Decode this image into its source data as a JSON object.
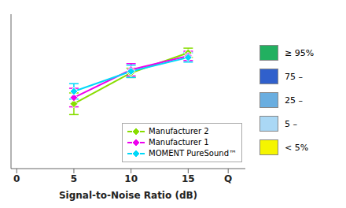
{
  "chart_data": {
    "type": "line",
    "x_label": "Signal-to-Noise Ratio (dB)",
    "xlim": [
      -0.5,
      20
    ],
    "xticks": [
      0,
      5,
      10,
      15,
      {
        "value": 18.5,
        "label": "Q"
      }
    ],
    "ylim": [
      0,
      100
    ],
    "yticks": [],
    "tick_labels": "x",
    "grid": false,
    "legend": "lower right",
    "x": [
      5,
      10,
      15
    ],
    "series": [
      {
        "name": "Manufacturer 2",
        "color": "#88dd00",
        "marker": "diamond",
        "values": [
          42,
          62,
          75
        ],
        "error": [
          7,
          3,
          3
        ]
      },
      {
        "name": "Manufacturer 1",
        "color": "#ee00ee",
        "marker": "diamond",
        "values": [
          46,
          64,
          73
        ],
        "error": [
          6,
          4,
          3
        ]
      },
      {
        "name": "MOMENT PureSound™",
        "color": "#00d8f8",
        "marker": "diamond",
        "values": [
          50,
          63,
          72
        ],
        "error": [
          5,
          4,
          3
        ]
      }
    ],
    "band_legend": {
      "labels": [
        "≥ 95%",
        "75 –",
        "25 –",
        "5 –",
        "< 5%"
      ],
      "colors": [
        "#22b060",
        "#3060cc",
        "#6aaee0",
        "#aad8f5",
        "#f5f500"
      ]
    }
  }
}
